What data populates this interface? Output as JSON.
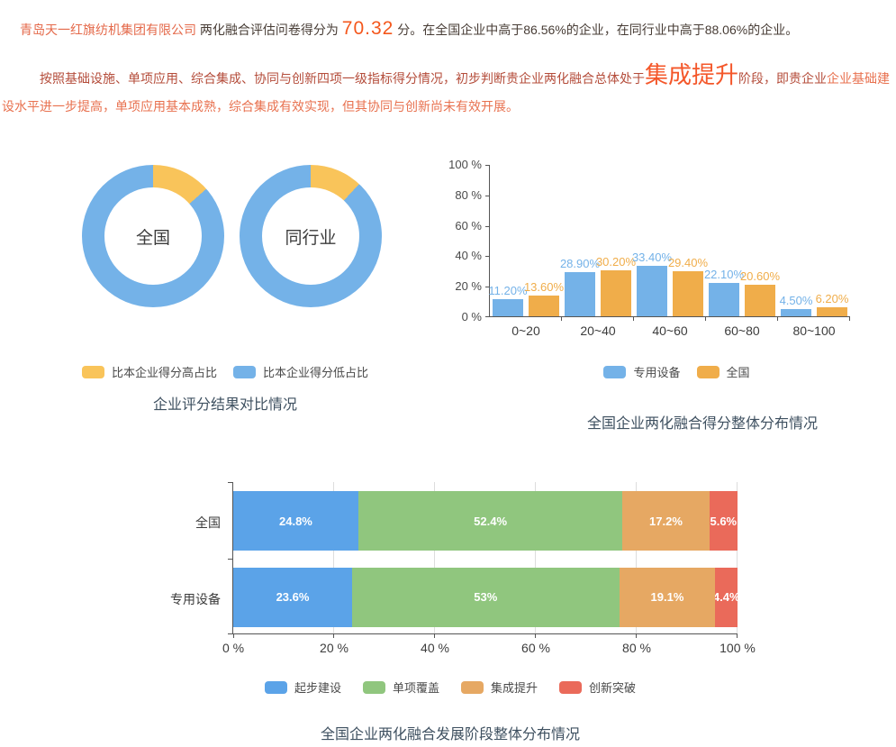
{
  "report": {
    "p1": {
      "company": "青岛天一红旗纺机集团有限公司",
      "mid": " 两化融合评估问卷得分为 ",
      "score": "70.32",
      "after": " 分。在全国企业中高于86.56%的企业，在同行业中高于88.06%的企业。"
    },
    "p2": {
      "lead": "按照基础设施、单项应用、综合集成、协同与创新四项一级指标得分情况，初步判断贵企业两化融合总体处于",
      "stage": "集成提升",
      "mid": "阶段，即贵企业",
      "tail": "企业基础建设水平进一步提高，单项应用基本成熟，综合集成有效实现，但其协同与创新尚未有效开展。"
    }
  },
  "colors": {
    "blue": "#74b2e8",
    "stacked_blue": "#5ba3e8",
    "yellow": "#f9c45a",
    "orange": "#f0ad4a",
    "green": "#90c67e",
    "stacked_orange": "#e6a863",
    "red": "#ea6a5a",
    "title": "#3e5060",
    "highlight": "#e4694a"
  },
  "chart_data": [
    {
      "type": "pie",
      "variant": "donut-pair",
      "title": "企业评分结果对比情况",
      "donuts": [
        {
          "label": "全国",
          "slices": [
            {
              "name": "比本企业得分高占比",
              "value": 13.44,
              "color": "#f9c45a"
            },
            {
              "name": "比本企业得分低占比",
              "value": 86.56,
              "color": "#74b2e8"
            }
          ]
        },
        {
          "label": "同行业",
          "slices": [
            {
              "name": "比本企业得分高占比",
              "value": 11.94,
              "color": "#f9c45a"
            },
            {
              "name": "比本企业得分低占比",
              "value": 88.06,
              "color": "#74b2e8"
            }
          ]
        }
      ],
      "legend": [
        {
          "label": "比本企业得分高占比",
          "color": "#f9c45a"
        },
        {
          "label": "比本企业得分低占比",
          "color": "#74b2e8"
        }
      ]
    },
    {
      "type": "bar",
      "title": "全国企业两化融合得分整体分布情况",
      "categories": [
        "0~20",
        "20~40",
        "40~60",
        "60~80",
        "80~100"
      ],
      "series": [
        {
          "name": "专用设备",
          "color": "#74b2e8",
          "values": [
            11.2,
            28.9,
            33.4,
            22.1,
            4.5
          ],
          "labels": [
            "11.20%",
            "28.90%",
            "33.40%",
            "22.10%",
            "4.50%"
          ]
        },
        {
          "name": "全国",
          "color": "#f0ad4a",
          "values": [
            13.6,
            30.2,
            29.4,
            20.6,
            6.2
          ],
          "labels": [
            "13.60%",
            "30.20%",
            "29.40%",
            "20.60%",
            "6.20%"
          ]
        }
      ],
      "yticks": [
        "0 %",
        "20 %",
        "40 %",
        "60 %",
        "80 %",
        "100 %"
      ],
      "ylim": [
        0,
        100
      ],
      "grid": false,
      "legend_position": "bottom"
    },
    {
      "type": "bar",
      "variant": "stacked-horizontal",
      "title": "全国企业两化融合发展阶段整体分布情况",
      "categories": [
        "全国",
        "专用设备"
      ],
      "series": [
        {
          "name": "起步建设",
          "color": "#5ba3e8",
          "values": [
            24.8,
            23.6
          ],
          "labels": [
            "24.8%",
            "23.6%"
          ]
        },
        {
          "name": "单项覆盖",
          "color": "#90c67e",
          "values": [
            52.4,
            53.0
          ],
          "labels": [
            "52.4%",
            "53%"
          ]
        },
        {
          "name": "集成提升",
          "color": "#e6a863",
          "values": [
            17.2,
            19.1
          ],
          "labels": [
            "17.2%",
            "19.1%"
          ]
        },
        {
          "name": "创新突破",
          "color": "#ea6a5a",
          "values": [
            5.6,
            4.4
          ],
          "labels": [
            "5.6%",
            "4.4%"
          ]
        }
      ],
      "xticks": [
        "0 %",
        "20 %",
        "40 %",
        "60 %",
        "80 %",
        "100 %"
      ],
      "xlim": [
        0,
        100
      ],
      "grid": true,
      "legend_position": "bottom"
    }
  ]
}
